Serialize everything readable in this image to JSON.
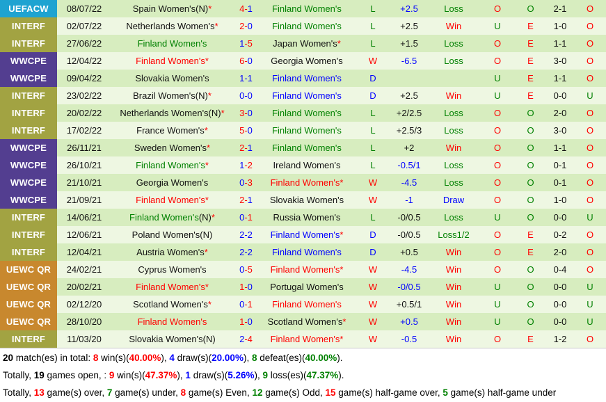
{
  "colors": {
    "red": "#ff0000",
    "green": "#008000",
    "blue": "#0000ff",
    "black": "#111111"
  },
  "badge_colors": {
    "UEFACW": "#1ea3d1",
    "INTERF": "#a2a342",
    "WWCPE": "#533e90",
    "UEWC QR": "#c8882e"
  },
  "table": {
    "rows": [
      {
        "comp": "UEFACW",
        "date": "08/07/22",
        "home": {
          "text": "Spain Women's(N)",
          "color": "black",
          "star": true
        },
        "score": {
          "h": "4",
          "a": "1",
          "w": "h"
        },
        "away": {
          "text": "Finland Women's",
          "color": "green"
        },
        "wdl": {
          "t": "L",
          "c": "green"
        },
        "hcp": {
          "t": "+2.5",
          "c": "blue"
        },
        "res": {
          "t": "Loss",
          "c": "green"
        },
        "ou1": {
          "t": "O",
          "c": "red"
        },
        "oe": {
          "t": "O",
          "c": "green"
        },
        "half": "2-1",
        "ou2": {
          "t": "O",
          "c": "red"
        }
      },
      {
        "comp": "INTERF",
        "date": "02/07/22",
        "home": {
          "text": "Netherlands Women's",
          "color": "black",
          "star": true
        },
        "score": {
          "h": "2",
          "a": "0",
          "w": "h"
        },
        "away": {
          "text": "Finland Women's",
          "color": "green"
        },
        "wdl": {
          "t": "L",
          "c": "green"
        },
        "hcp": {
          "t": "+2.5",
          "c": "black"
        },
        "res": {
          "t": "Win",
          "c": "red"
        },
        "ou1": {
          "t": "U",
          "c": "green"
        },
        "oe": {
          "t": "E",
          "c": "red"
        },
        "half": "1-0",
        "ou2": {
          "t": "O",
          "c": "red"
        }
      },
      {
        "comp": "INTERF",
        "date": "27/06/22",
        "home": {
          "text": "Finland Women's",
          "color": "green"
        },
        "score": {
          "h": "1",
          "a": "5",
          "w": "a"
        },
        "away": {
          "text": "Japan Women's",
          "color": "black",
          "star": true
        },
        "wdl": {
          "t": "L",
          "c": "green"
        },
        "hcp": {
          "t": "+1.5",
          "c": "black"
        },
        "res": {
          "t": "Loss",
          "c": "green"
        },
        "ou1": {
          "t": "O",
          "c": "red"
        },
        "oe": {
          "t": "E",
          "c": "red"
        },
        "half": "1-1",
        "ou2": {
          "t": "O",
          "c": "red"
        }
      },
      {
        "comp": "WWCPE",
        "date": "12/04/22",
        "home": {
          "text": "Finland Women's",
          "color": "red",
          "star": true
        },
        "score": {
          "h": "6",
          "a": "0",
          "w": "h"
        },
        "away": {
          "text": "Georgia Women's",
          "color": "black"
        },
        "wdl": {
          "t": "W",
          "c": "red"
        },
        "hcp": {
          "t": "-6.5",
          "c": "blue"
        },
        "res": {
          "t": "Loss",
          "c": "green"
        },
        "ou1": {
          "t": "O",
          "c": "red"
        },
        "oe": {
          "t": "E",
          "c": "red"
        },
        "half": "3-0",
        "ou2": {
          "t": "O",
          "c": "red"
        }
      },
      {
        "comp": "WWCPE",
        "date": "09/04/22",
        "home": {
          "text": "Slovakia Women's",
          "color": "black"
        },
        "score": {
          "h": "1",
          "a": "1",
          "w": "d"
        },
        "away": {
          "text": "Finland Women's",
          "color": "blue"
        },
        "wdl": {
          "t": "D",
          "c": "blue"
        },
        "hcp": {
          "t": "",
          "c": "black"
        },
        "res": {
          "t": "",
          "c": "black"
        },
        "ou1": {
          "t": "U",
          "c": "green"
        },
        "oe": {
          "t": "E",
          "c": "red"
        },
        "half": "1-1",
        "ou2": {
          "t": "O",
          "c": "red"
        }
      },
      {
        "comp": "INTERF",
        "date": "23/02/22",
        "home": {
          "text": "Brazil Women's(N)",
          "color": "black",
          "star": true
        },
        "score": {
          "h": "0",
          "a": "0",
          "w": "d"
        },
        "away": {
          "text": "Finland Women's",
          "color": "blue"
        },
        "wdl": {
          "t": "D",
          "c": "blue"
        },
        "hcp": {
          "t": "+2.5",
          "c": "black"
        },
        "res": {
          "t": "Win",
          "c": "red"
        },
        "ou1": {
          "t": "U",
          "c": "green"
        },
        "oe": {
          "t": "E",
          "c": "red"
        },
        "half": "0-0",
        "ou2": {
          "t": "U",
          "c": "green"
        }
      },
      {
        "comp": "INTERF",
        "date": "20/02/22",
        "home": {
          "text": "Netherlands Women's(N)",
          "color": "black",
          "star": true
        },
        "score": {
          "h": "3",
          "a": "0",
          "w": "h"
        },
        "away": {
          "text": "Finland Women's",
          "color": "green"
        },
        "wdl": {
          "t": "L",
          "c": "green"
        },
        "hcp": {
          "t": "+2/2.5",
          "c": "black"
        },
        "res": {
          "t": "Loss",
          "c": "green"
        },
        "ou1": {
          "t": "O",
          "c": "red"
        },
        "oe": {
          "t": "O",
          "c": "green"
        },
        "half": "2-0",
        "ou2": {
          "t": "O",
          "c": "red"
        }
      },
      {
        "comp": "INTERF",
        "date": "17/02/22",
        "home": {
          "text": "France Women's",
          "color": "black",
          "star": true
        },
        "score": {
          "h": "5",
          "a": "0",
          "w": "h"
        },
        "away": {
          "text": "Finland Women's",
          "color": "green"
        },
        "wdl": {
          "t": "L",
          "c": "green"
        },
        "hcp": {
          "t": "+2.5/3",
          "c": "black"
        },
        "res": {
          "t": "Loss",
          "c": "green"
        },
        "ou1": {
          "t": "O",
          "c": "red"
        },
        "oe": {
          "t": "O",
          "c": "green"
        },
        "half": "3-0",
        "ou2": {
          "t": "O",
          "c": "red"
        }
      },
      {
        "comp": "WWCPE",
        "date": "26/11/21",
        "home": {
          "text": "Sweden Women's",
          "color": "black",
          "star": true
        },
        "score": {
          "h": "2",
          "a": "1",
          "w": "h"
        },
        "away": {
          "text": "Finland Women's",
          "color": "green"
        },
        "wdl": {
          "t": "L",
          "c": "green"
        },
        "hcp": {
          "t": "+2",
          "c": "black"
        },
        "res": {
          "t": "Win",
          "c": "red"
        },
        "ou1": {
          "t": "O",
          "c": "red"
        },
        "oe": {
          "t": "O",
          "c": "green"
        },
        "half": "1-1",
        "ou2": {
          "t": "O",
          "c": "red"
        }
      },
      {
        "comp": "WWCPE",
        "date": "26/10/21",
        "home": {
          "text": "Finland Women's",
          "color": "green",
          "star": true
        },
        "score": {
          "h": "1",
          "a": "2",
          "w": "a"
        },
        "away": {
          "text": "Ireland Women's",
          "color": "black"
        },
        "wdl": {
          "t": "L",
          "c": "green"
        },
        "hcp": {
          "t": "-0.5/1",
          "c": "blue"
        },
        "res": {
          "t": "Loss",
          "c": "green"
        },
        "ou1": {
          "t": "O",
          "c": "red"
        },
        "oe": {
          "t": "O",
          "c": "green"
        },
        "half": "0-1",
        "ou2": {
          "t": "O",
          "c": "red"
        }
      },
      {
        "comp": "WWCPE",
        "date": "21/10/21",
        "home": {
          "text": "Georgia Women's",
          "color": "black"
        },
        "score": {
          "h": "0",
          "a": "3",
          "w": "a"
        },
        "away": {
          "text": "Finland Women's",
          "color": "red",
          "star": true
        },
        "wdl": {
          "t": "W",
          "c": "red"
        },
        "hcp": {
          "t": "-4.5",
          "c": "blue"
        },
        "res": {
          "t": "Loss",
          "c": "green"
        },
        "ou1": {
          "t": "O",
          "c": "red"
        },
        "oe": {
          "t": "O",
          "c": "green"
        },
        "half": "0-1",
        "ou2": {
          "t": "O",
          "c": "red"
        }
      },
      {
        "comp": "WWCPE",
        "date": "21/09/21",
        "home": {
          "text": "Finland Women's",
          "color": "red",
          "star": true
        },
        "score": {
          "h": "2",
          "a": "1",
          "w": "h"
        },
        "away": {
          "text": "Slovakia Women's",
          "color": "black"
        },
        "wdl": {
          "t": "W",
          "c": "red"
        },
        "hcp": {
          "t": "-1",
          "c": "blue"
        },
        "res": {
          "t": "Draw",
          "c": "blue"
        },
        "ou1": {
          "t": "O",
          "c": "red"
        },
        "oe": {
          "t": "O",
          "c": "green"
        },
        "half": "1-0",
        "ou2": {
          "t": "O",
          "c": "red"
        }
      },
      {
        "comp": "INTERF",
        "date": "14/06/21",
        "home": {
          "text": "Finland Women's",
          "color": "green",
          "extra": "(N)",
          "star": true
        },
        "score": {
          "h": "0",
          "a": "1",
          "w": "a"
        },
        "away": {
          "text": "Russia Women's",
          "color": "black"
        },
        "wdl": {
          "t": "L",
          "c": "green"
        },
        "hcp": {
          "t": "-0/0.5",
          "c": "black"
        },
        "res": {
          "t": "Loss",
          "c": "green"
        },
        "ou1": {
          "t": "U",
          "c": "green"
        },
        "oe": {
          "t": "O",
          "c": "green"
        },
        "half": "0-0",
        "ou2": {
          "t": "U",
          "c": "green"
        }
      },
      {
        "comp": "INTERF",
        "date": "12/06/21",
        "home": {
          "text": "Poland Women's(N)",
          "color": "black"
        },
        "score": {
          "h": "2",
          "a": "2",
          "w": "d"
        },
        "away": {
          "text": "Finland Women's",
          "color": "blue",
          "star": true
        },
        "wdl": {
          "t": "D",
          "c": "blue"
        },
        "hcp": {
          "t": "-0/0.5",
          "c": "black"
        },
        "res": {
          "t": "Loss1/2",
          "c": "green"
        },
        "ou1": {
          "t": "O",
          "c": "red"
        },
        "oe": {
          "t": "E",
          "c": "red"
        },
        "half": "0-2",
        "ou2": {
          "t": "O",
          "c": "red"
        }
      },
      {
        "comp": "INTERF",
        "date": "12/04/21",
        "home": {
          "text": "Austria Women's",
          "color": "black",
          "star": true
        },
        "score": {
          "h": "2",
          "a": "2",
          "w": "d"
        },
        "away": {
          "text": "Finland Women's",
          "color": "blue"
        },
        "wdl": {
          "t": "D",
          "c": "blue"
        },
        "hcp": {
          "t": "+0.5",
          "c": "black"
        },
        "res": {
          "t": "Win",
          "c": "red"
        },
        "ou1": {
          "t": "O",
          "c": "red"
        },
        "oe": {
          "t": "E",
          "c": "red"
        },
        "half": "2-0",
        "ou2": {
          "t": "O",
          "c": "red"
        }
      },
      {
        "comp": "UEWC QR",
        "date": "24/02/21",
        "home": {
          "text": "Cyprus Women's",
          "color": "black"
        },
        "score": {
          "h": "0",
          "a": "5",
          "w": "a"
        },
        "away": {
          "text": "Finland Women's",
          "color": "red",
          "star": true
        },
        "wdl": {
          "t": "W",
          "c": "red"
        },
        "hcp": {
          "t": "-4.5",
          "c": "blue"
        },
        "res": {
          "t": "Win",
          "c": "red"
        },
        "ou1": {
          "t": "O",
          "c": "red"
        },
        "oe": {
          "t": "O",
          "c": "green"
        },
        "half": "0-4",
        "ou2": {
          "t": "O",
          "c": "red"
        }
      },
      {
        "comp": "UEWC QR",
        "date": "20/02/21",
        "home": {
          "text": "Finland Women's",
          "color": "red",
          "star": true
        },
        "score": {
          "h": "1",
          "a": "0",
          "w": "h"
        },
        "away": {
          "text": "Portugal Women's",
          "color": "black"
        },
        "wdl": {
          "t": "W",
          "c": "red"
        },
        "hcp": {
          "t": "-0/0.5",
          "c": "blue"
        },
        "res": {
          "t": "Win",
          "c": "red"
        },
        "ou1": {
          "t": "U",
          "c": "green"
        },
        "oe": {
          "t": "O",
          "c": "green"
        },
        "half": "0-0",
        "ou2": {
          "t": "U",
          "c": "green"
        }
      },
      {
        "comp": "UEWC QR",
        "date": "02/12/20",
        "home": {
          "text": "Scotland Women's",
          "color": "black",
          "star": true
        },
        "score": {
          "h": "0",
          "a": "1",
          "w": "a"
        },
        "away": {
          "text": "Finland Women's",
          "color": "red"
        },
        "wdl": {
          "t": "W",
          "c": "red"
        },
        "hcp": {
          "t": "+0.5/1",
          "c": "black"
        },
        "res": {
          "t": "Win",
          "c": "red"
        },
        "ou1": {
          "t": "U",
          "c": "green"
        },
        "oe": {
          "t": "O",
          "c": "green"
        },
        "half": "0-0",
        "ou2": {
          "t": "U",
          "c": "green"
        }
      },
      {
        "comp": "UEWC QR",
        "date": "28/10/20",
        "home": {
          "text": "Finland Women's",
          "color": "red"
        },
        "score": {
          "h": "1",
          "a": "0",
          "w": "h"
        },
        "away": {
          "text": "Scotland Women's",
          "color": "black",
          "star": true
        },
        "wdl": {
          "t": "W",
          "c": "red"
        },
        "hcp": {
          "t": "+0.5",
          "c": "blue"
        },
        "res": {
          "t": "Win",
          "c": "red"
        },
        "ou1": {
          "t": "U",
          "c": "green"
        },
        "oe": {
          "t": "O",
          "c": "green"
        },
        "half": "0-0",
        "ou2": {
          "t": "U",
          "c": "green"
        }
      },
      {
        "comp": "INTERF",
        "date": "11/03/20",
        "home": {
          "text": "Slovakia Women's(N)",
          "color": "black"
        },
        "score": {
          "h": "2",
          "a": "4",
          "w": "a"
        },
        "away": {
          "text": "Finland Women's",
          "color": "red",
          "star": true
        },
        "wdl": {
          "t": "W",
          "c": "red"
        },
        "hcp": {
          "t": "-0.5",
          "c": "blue"
        },
        "res": {
          "t": "Win",
          "c": "red"
        },
        "ou1": {
          "t": "O",
          "c": "red"
        },
        "oe": {
          "t": "E",
          "c": "red"
        },
        "half": "1-2",
        "ou2": {
          "t": "O",
          "c": "red"
        }
      }
    ]
  },
  "summary": {
    "lines": [
      [
        {
          "t": "20",
          "b": 1
        },
        {
          "t": " match(es) in total: "
        },
        {
          "t": "8",
          "b": 1,
          "c": "red"
        },
        {
          "t": " win(s)("
        },
        {
          "t": "40.00%",
          "b": 1,
          "c": "red"
        },
        {
          "t": "), "
        },
        {
          "t": "4",
          "b": 1,
          "c": "blue"
        },
        {
          "t": " draw(s)("
        },
        {
          "t": "20.00%",
          "b": 1,
          "c": "blue"
        },
        {
          "t": "), "
        },
        {
          "t": "8",
          "b": 1,
          "c": "green"
        },
        {
          "t": " defeat(es)("
        },
        {
          "t": "40.00%",
          "b": 1,
          "c": "green"
        },
        {
          "t": ")."
        }
      ],
      [
        {
          "t": "Totally, "
        },
        {
          "t": "19",
          "b": 1
        },
        {
          "t": " games open, : "
        },
        {
          "t": "9",
          "b": 1,
          "c": "red"
        },
        {
          "t": " win(s)("
        },
        {
          "t": "47.37%",
          "b": 1,
          "c": "red"
        },
        {
          "t": "), "
        },
        {
          "t": "1",
          "b": 1,
          "c": "blue"
        },
        {
          "t": " draw(s)("
        },
        {
          "t": "5.26%",
          "b": 1,
          "c": "blue"
        },
        {
          "t": "), "
        },
        {
          "t": "9",
          "b": 1,
          "c": "green"
        },
        {
          "t": " loss(es)("
        },
        {
          "t": "47.37%",
          "b": 1,
          "c": "green"
        },
        {
          "t": ")."
        }
      ],
      [
        {
          "t": "Totally, "
        },
        {
          "t": "13",
          "b": 1,
          "c": "red"
        },
        {
          "t": " game(s) over, "
        },
        {
          "t": "7",
          "b": 1,
          "c": "green"
        },
        {
          "t": " game(s) under, "
        },
        {
          "t": "8",
          "b": 1,
          "c": "red"
        },
        {
          "t": " game(s) Even, "
        },
        {
          "t": "12",
          "b": 1,
          "c": "green"
        },
        {
          "t": " game(s) Odd, "
        },
        {
          "t": "15",
          "b": 1,
          "c": "red"
        },
        {
          "t": " game(s) half-game over, "
        },
        {
          "t": "5",
          "b": 1,
          "c": "green"
        },
        {
          "t": " game(s) half-game under"
        }
      ]
    ]
  }
}
